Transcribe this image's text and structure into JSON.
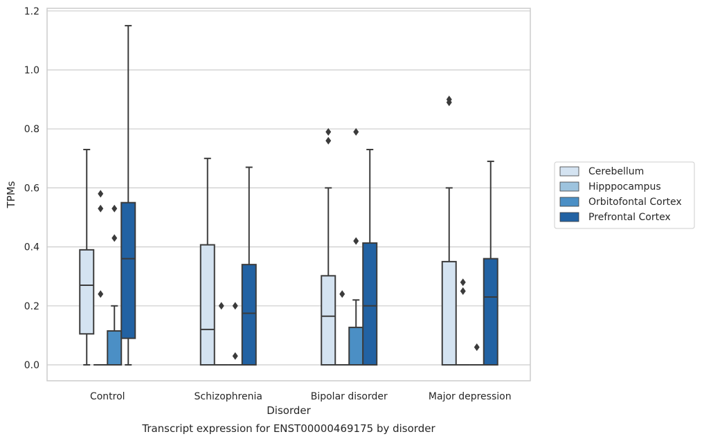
{
  "chart_data": {
    "type": "box",
    "xlabel": "Disorder",
    "ylabel": "TPMs",
    "caption": "Transcript expression for ENST00000469175 by disorder",
    "ylim": [
      -0.055,
      1.21
    ],
    "yticks": [
      "0.0",
      "0.2",
      "0.4",
      "0.6",
      "0.8",
      "1.0",
      "1.2"
    ],
    "grid": "horizontal",
    "legend_position": "right",
    "categories": [
      "Control",
      "Schizophrenia",
      "Bipolar disorder",
      "Major depression"
    ],
    "series": [
      {
        "name": "Cerebellum",
        "color": "#d4e3f1",
        "boxes": [
          {
            "whislo": 0.0,
            "q1": 0.105,
            "med": 0.27,
            "q3": 0.39,
            "whishi": 0.73,
            "fliers": []
          },
          {
            "whislo": 0.0,
            "q1": 0.0,
            "med": 0.12,
            "q3": 0.407,
            "whishi": 0.7,
            "fliers": []
          },
          {
            "whislo": 0.0,
            "q1": 0.0,
            "med": 0.165,
            "q3": 0.302,
            "whishi": 0.6,
            "fliers": [
              0.76,
              0.79
            ]
          },
          {
            "whislo": 0.0,
            "q1": 0.0,
            "med": 0.0,
            "q3": 0.35,
            "whishi": 0.6,
            "fliers": [
              0.89,
              0.9
            ]
          }
        ]
      },
      {
        "name": "Hipppocampus",
        "color": "#9dc3de",
        "boxes": [
          {
            "whislo": 0.0,
            "q1": 0.0,
            "med": 0.0,
            "q3": 0.0,
            "whishi": 0.0,
            "fliers": [
              0.24,
              0.53,
              0.58
            ]
          },
          {
            "whislo": 0.0,
            "q1": 0.0,
            "med": 0.0,
            "q3": 0.0,
            "whishi": 0.0,
            "fliers": [
              0.2
            ]
          },
          {
            "whislo": 0.0,
            "q1": 0.0,
            "med": 0.0,
            "q3": 0.0,
            "whishi": 0.0,
            "fliers": [
              0.24
            ]
          },
          {
            "whislo": 0.0,
            "q1": 0.0,
            "med": 0.0,
            "q3": 0.0,
            "whishi": 0.0,
            "fliers": [
              0.25,
              0.28
            ]
          }
        ]
      },
      {
        "name": "Orbitofontal Cortex",
        "color": "#4b8fc5",
        "boxes": [
          {
            "whislo": 0.0,
            "q1": 0.0,
            "med": 0.0,
            "q3": 0.115,
            "whishi": 0.2,
            "fliers": [
              0.43,
              0.53
            ]
          },
          {
            "whislo": 0.0,
            "q1": 0.0,
            "med": 0.0,
            "q3": 0.0,
            "whishi": 0.0,
            "fliers": [
              0.03,
              0.2
            ]
          },
          {
            "whislo": 0.0,
            "q1": 0.0,
            "med": 0.0,
            "q3": 0.127,
            "whishi": 0.22,
            "fliers": [
              0.42,
              0.79
            ]
          },
          {
            "whislo": 0.0,
            "q1": 0.0,
            "med": 0.0,
            "q3": 0.0,
            "whishi": 0.0,
            "fliers": [
              0.06
            ]
          }
        ]
      },
      {
        "name": "Prefrontal Cortex",
        "color": "#2262a3",
        "boxes": [
          {
            "whislo": 0.0,
            "q1": 0.09,
            "med": 0.36,
            "q3": 0.55,
            "whishi": 1.15,
            "fliers": []
          },
          {
            "whislo": 0.0,
            "q1": 0.0,
            "med": 0.175,
            "q3": 0.34,
            "whishi": 0.67,
            "fliers": []
          },
          {
            "whislo": 0.0,
            "q1": 0.0,
            "med": 0.2,
            "q3": 0.413,
            "whishi": 0.73,
            "fliers": []
          },
          {
            "whislo": 0.0,
            "q1": 0.0,
            "med": 0.23,
            "q3": 0.36,
            "whishi": 0.69,
            "fliers": []
          }
        ]
      }
    ]
  }
}
